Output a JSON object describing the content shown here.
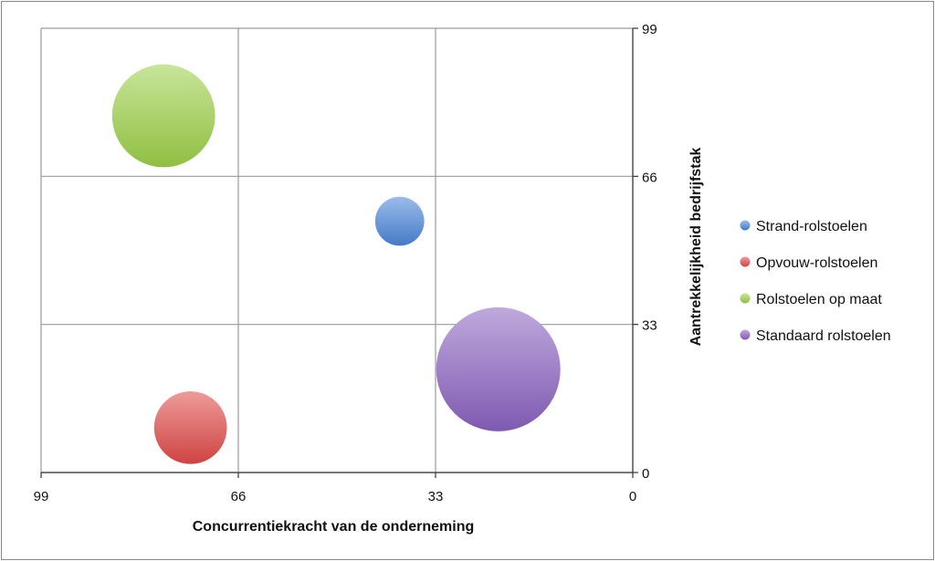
{
  "chart_data": {
    "type": "bubble",
    "xlabel": "Concurrentiekracht van de onderneming",
    "ylabel": "Aantrekkelijkheid bedrijfstak",
    "xlim": [
      99,
      0
    ],
    "ylim": [
      0,
      99
    ],
    "x_ticks": [
      "99",
      "66",
      "33",
      "0"
    ],
    "y_ticks": [
      "0",
      "33",
      "66",
      "99"
    ],
    "x_tick_values": [
      99,
      66,
      33,
      0
    ],
    "y_tick_values": [
      0,
      33,
      66,
      99
    ],
    "grid": true,
    "legend_position": "right",
    "series": [
      {
        "name": "Strand-rolstoelen",
        "x": 39,
        "y": 56,
        "size": 1.0,
        "color": "#4a86d8"
      },
      {
        "name": "Opvouw-rolstoelen",
        "x": 74,
        "y": 10,
        "size": 2.2,
        "color": "#e04a48"
      },
      {
        "name": "Rolstoelen op maat",
        "x": 78.5,
        "y": 79.5,
        "size": 4.4,
        "color": "#9bd047"
      },
      {
        "name": "Standaard rolstoelen",
        "x": 22.5,
        "y": 23,
        "size": 6.4,
        "color": "#8a62c0"
      }
    ]
  }
}
